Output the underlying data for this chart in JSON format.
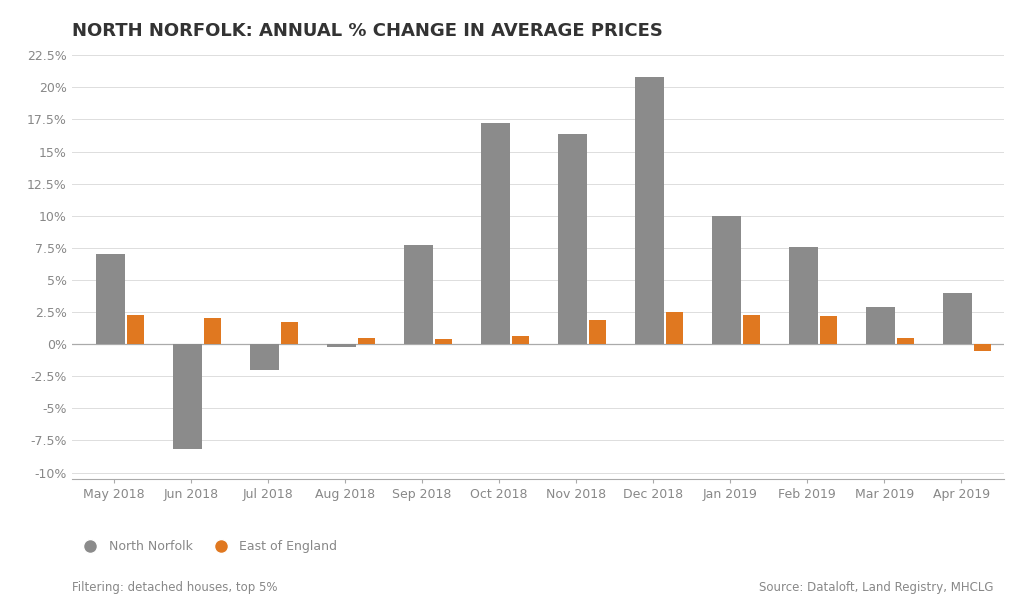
{
  "title": "NORTH NORFOLK: ANNUAL % CHANGE IN AVERAGE PRICES",
  "categories": [
    "May 2018",
    "Jun 2018",
    "Jul 2018",
    "Aug 2018",
    "Sep 2018",
    "Oct 2018",
    "Nov 2018",
    "Dec 2018",
    "Jan 2019",
    "Feb 2019",
    "Mar 2019",
    "Apr 2019"
  ],
  "north_norfolk": [
    7.0,
    -8.2,
    -2.0,
    -0.2,
    7.7,
    17.2,
    16.4,
    20.8,
    10.0,
    7.6,
    2.9,
    4.0
  ],
  "east_of_england": [
    2.3,
    2.0,
    1.7,
    0.5,
    0.4,
    0.6,
    1.9,
    2.5,
    2.3,
    2.2,
    0.5,
    -0.5
  ],
  "nn_color": "#8B8B8B",
  "eoe_color": "#E07820",
  "background_color": "#FFFFFF",
  "plot_bg_color": "#FFFFFF",
  "ylim": [
    -10.5,
    22.5
  ],
  "yticks": [
    -10,
    -7.5,
    -5,
    -2.5,
    0,
    2.5,
    5,
    7.5,
    10,
    12.5,
    15,
    17.5,
    20,
    22.5
  ],
  "ytick_labels": [
    "-10%",
    "-7.5%",
    "-5%",
    "-2.5%",
    "0%",
    "2.5%",
    "5%",
    "7.5%",
    "10%",
    "12.5%",
    "15%",
    "17.5%",
    "20%",
    "22.5%"
  ],
  "nn_bar_width": 0.38,
  "eoe_bar_width": 0.22,
  "legend_nn": "North Norfolk",
  "legend_eoe": "East of England",
  "footnote_left": "Filtering: detached houses, top 5%",
  "footnote_right": "Source: Dataloft, Land Registry, MHCLG",
  "title_fontsize": 13,
  "axis_fontsize": 9,
  "legend_fontsize": 9,
  "footnote_fontsize": 8.5,
  "grid_color": "#DDDDDD",
  "tick_color": "#888888",
  "text_color": "#333333"
}
